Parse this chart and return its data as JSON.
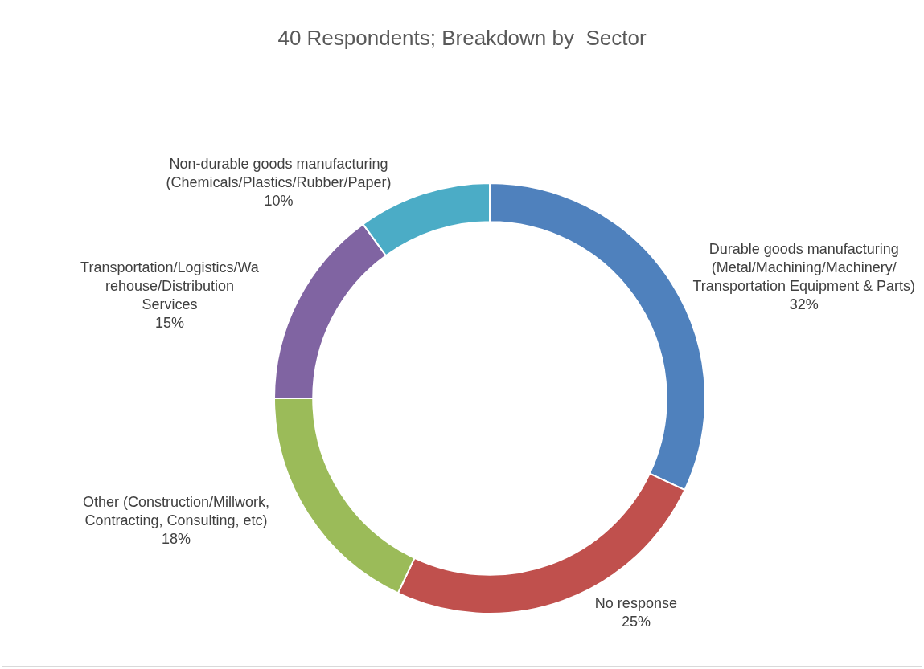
{
  "chart_data": {
    "type": "donut",
    "title": "40 Respondents; Breakdown by  Sector",
    "categories": [
      "Durable goods manufacturing\n(Metal/Machining/Machinery/\nTransportation Equipment & Parts)",
      "No response",
      "Other (Construction/Millwork,\nContracting, Consulting, etc)",
      "Transportation/Logistics/Wa\nrehouse/Distribution\nServices",
      "Non-durable goods manufacturing\n(Chemicals/Plastics/Rubber/Paper)"
    ],
    "values": [
      32,
      25,
      18,
      15,
      10
    ],
    "value_labels": [
      "32%",
      "25%",
      "18%",
      "15%",
      "10%"
    ],
    "colors": [
      "#4f81bd",
      "#c0504d",
      "#9bbb59",
      "#8064a2",
      "#4bacc6"
    ],
    "legend": false
  }
}
